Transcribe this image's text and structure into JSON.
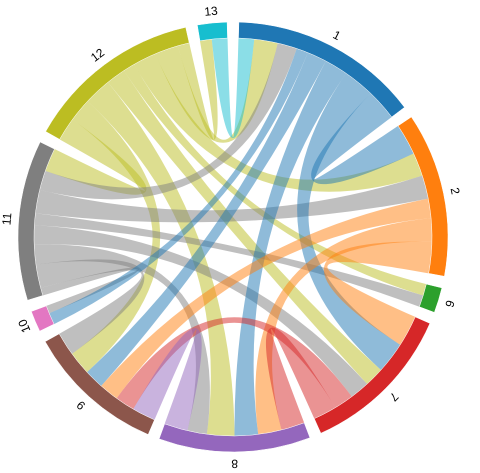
{
  "chart_data": {
    "type": "chord",
    "groups": [
      {
        "name": "1",
        "color": "#1f77b4"
      },
      {
        "name": "2",
        "color": "#ff7f0e"
      },
      {
        "name": "6",
        "color": "#2ca02c"
      },
      {
        "name": "7",
        "color": "#d62728"
      },
      {
        "name": "8",
        "color": "#9467bd"
      },
      {
        "name": "9",
        "color": "#8c564b"
      },
      {
        "name": "10",
        "color": "#e377c2"
      },
      {
        "name": "11",
        "color": "#7f7f7f"
      },
      {
        "name": "12",
        "color": "#bcbd22"
      },
      {
        "name": "13",
        "color": "#17becf"
      }
    ],
    "links": [
      {
        "source": "12",
        "target": "1",
        "value": 6
      },
      {
        "source": "12",
        "target": "2",
        "value": 6
      },
      {
        "source": "12",
        "target": "7",
        "value": 5
      },
      {
        "source": "12",
        "target": "8",
        "value": 7
      },
      {
        "source": "12",
        "target": "9",
        "value": 6
      },
      {
        "source": "12",
        "target": "11",
        "value": 6
      },
      {
        "source": "12",
        "target": "6",
        "value": 3
      },
      {
        "source": "12",
        "target": "13",
        "value": 3
      },
      {
        "source": "11",
        "target": "1",
        "value": 5
      },
      {
        "source": "11",
        "target": "2",
        "value": 6
      },
      {
        "source": "11",
        "target": "7",
        "value": 5
      },
      {
        "source": "11",
        "target": "8",
        "value": 5
      },
      {
        "source": "11",
        "target": "9",
        "value": 6
      },
      {
        "source": "11",
        "target": "10",
        "value": 2
      },
      {
        "source": "11",
        "target": "6",
        "value": 3
      },
      {
        "source": "13",
        "target": "1",
        "value": 4
      },
      {
        "source": "1",
        "target": "2",
        "value": 8
      },
      {
        "source": "1",
        "target": "7",
        "value": 8
      },
      {
        "source": "1",
        "target": "8",
        "value": 6
      },
      {
        "source": "1",
        "target": "9",
        "value": 5
      },
      {
        "source": "1",
        "target": "10",
        "value": 3
      },
      {
        "source": "2",
        "target": "7",
        "value": 8
      },
      {
        "source": "2",
        "target": "8",
        "value": 6
      },
      {
        "source": "2",
        "target": "9",
        "value": 5
      },
      {
        "source": "7",
        "target": "8",
        "value": 6
      },
      {
        "source": "7",
        "target": "9",
        "value": 5
      },
      {
        "source": "8",
        "target": "9",
        "value": 6
      }
    ]
  }
}
